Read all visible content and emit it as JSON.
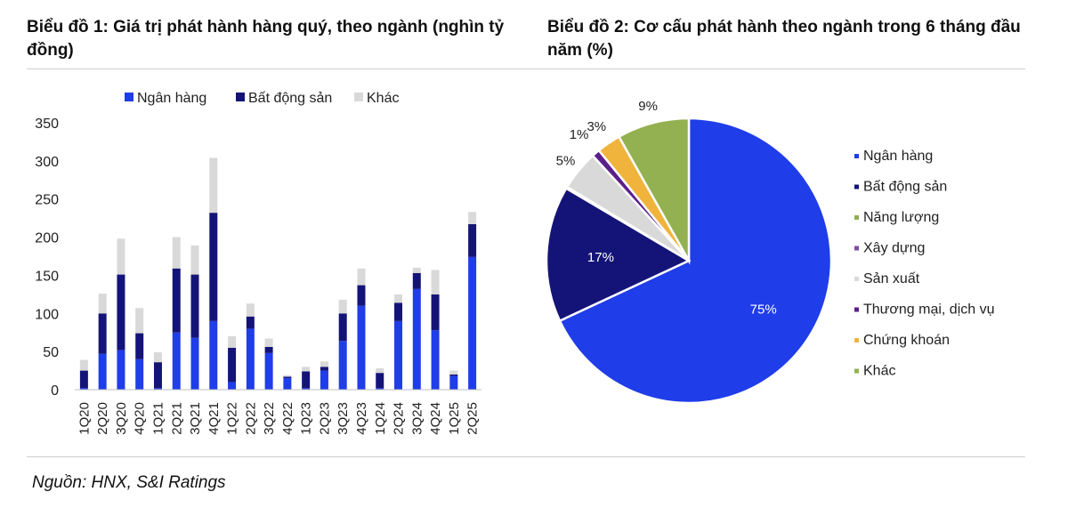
{
  "header": {
    "title1": "Biểu đồ 1: Giá trị phát hành hàng quý, theo ngành (nghìn tỷ đồng)",
    "title2": "Biểu đồ 2: Cơ cấu phát hành theo ngành trong 6 tháng đầu năm (%)"
  },
  "footer": {
    "source": "Nguồn: HNX, S&I Ratings"
  },
  "colors": {
    "ngan_hang": "#1f3de8",
    "bat_dong_san": "#141478",
    "khac_bar": "#d9d9d9",
    "nang_luong": "#8fb050",
    "xay_dung": "#7b4fa6",
    "san_xuat": "#d9d9d9",
    "thuong_mai": "#5a1f8c",
    "chung_khoan": "#f0b43c",
    "khac_pie": "#93b150"
  },
  "chart_data": [
    {
      "type": "bar",
      "stacked": true,
      "title": "Biểu đồ 1: Giá trị phát hành hàng quý, theo ngành (nghìn tỷ đồng)",
      "categories": [
        "1Q20",
        "2Q20",
        "3Q20",
        "4Q20",
        "1Q21",
        "2Q21",
        "3Q21",
        "4Q21",
        "1Q22",
        "2Q22",
        "3Q22",
        "4Q22",
        "1Q23",
        "2Q23",
        "3Q23",
        "4Q23",
        "1Q24",
        "2Q24",
        "3Q24",
        "4Q24",
        "1Q25",
        "2Q25"
      ],
      "series": [
        {
          "name": "Ngân hàng",
          "values": [
            2,
            47,
            52,
            40,
            2,
            75,
            68,
            90,
            10,
            80,
            48,
            15,
            2,
            25,
            64,
            110,
            2,
            90,
            132,
            78,
            18,
            174
          ]
        },
        {
          "name": "Bất động sản",
          "values": [
            23,
            53,
            99,
            34,
            34,
            84,
            83,
            142,
            45,
            16,
            8,
            2,
            22,
            5,
            36,
            27,
            20,
            24,
            21,
            47,
            2,
            43
          ]
        },
        {
          "name": "Khác",
          "values": [
            14,
            26,
            47,
            33,
            13,
            41,
            38,
            72,
            15,
            17,
            11,
            2,
            6,
            7,
            18,
            22,
            6,
            11,
            7,
            32,
            5,
            16
          ]
        }
      ],
      "ylim": [
        0,
        350
      ],
      "yticks": [
        "0",
        "50",
        "100",
        "150",
        "200",
        "250",
        "300",
        "350"
      ],
      "grid": false,
      "legend": "top"
    },
    {
      "type": "pie",
      "title": "Biểu đồ 2: Cơ cấu phát hành theo ngành trong 6 tháng đầu năm (%)",
      "slices": [
        {
          "name": "Ngân hàng",
          "value": 75,
          "label": "75%"
        },
        {
          "name": "Bất động sản",
          "value": 17,
          "label": "17%"
        },
        {
          "name": "Năng lượng",
          "value": 0.1,
          "label": ""
        },
        {
          "name": "Xây dựng",
          "value": 0.1,
          "label": ""
        },
        {
          "name": "Sản xuất",
          "value": 5,
          "label": "5%"
        },
        {
          "name": "Thương mại, dịch vụ",
          "value": 1,
          "label": "1%"
        },
        {
          "name": "Chứng khoán",
          "value": 3,
          "label": "3%"
        },
        {
          "name": "Khác",
          "value": 9,
          "label": "9%"
        }
      ],
      "legend": "right"
    }
  ]
}
